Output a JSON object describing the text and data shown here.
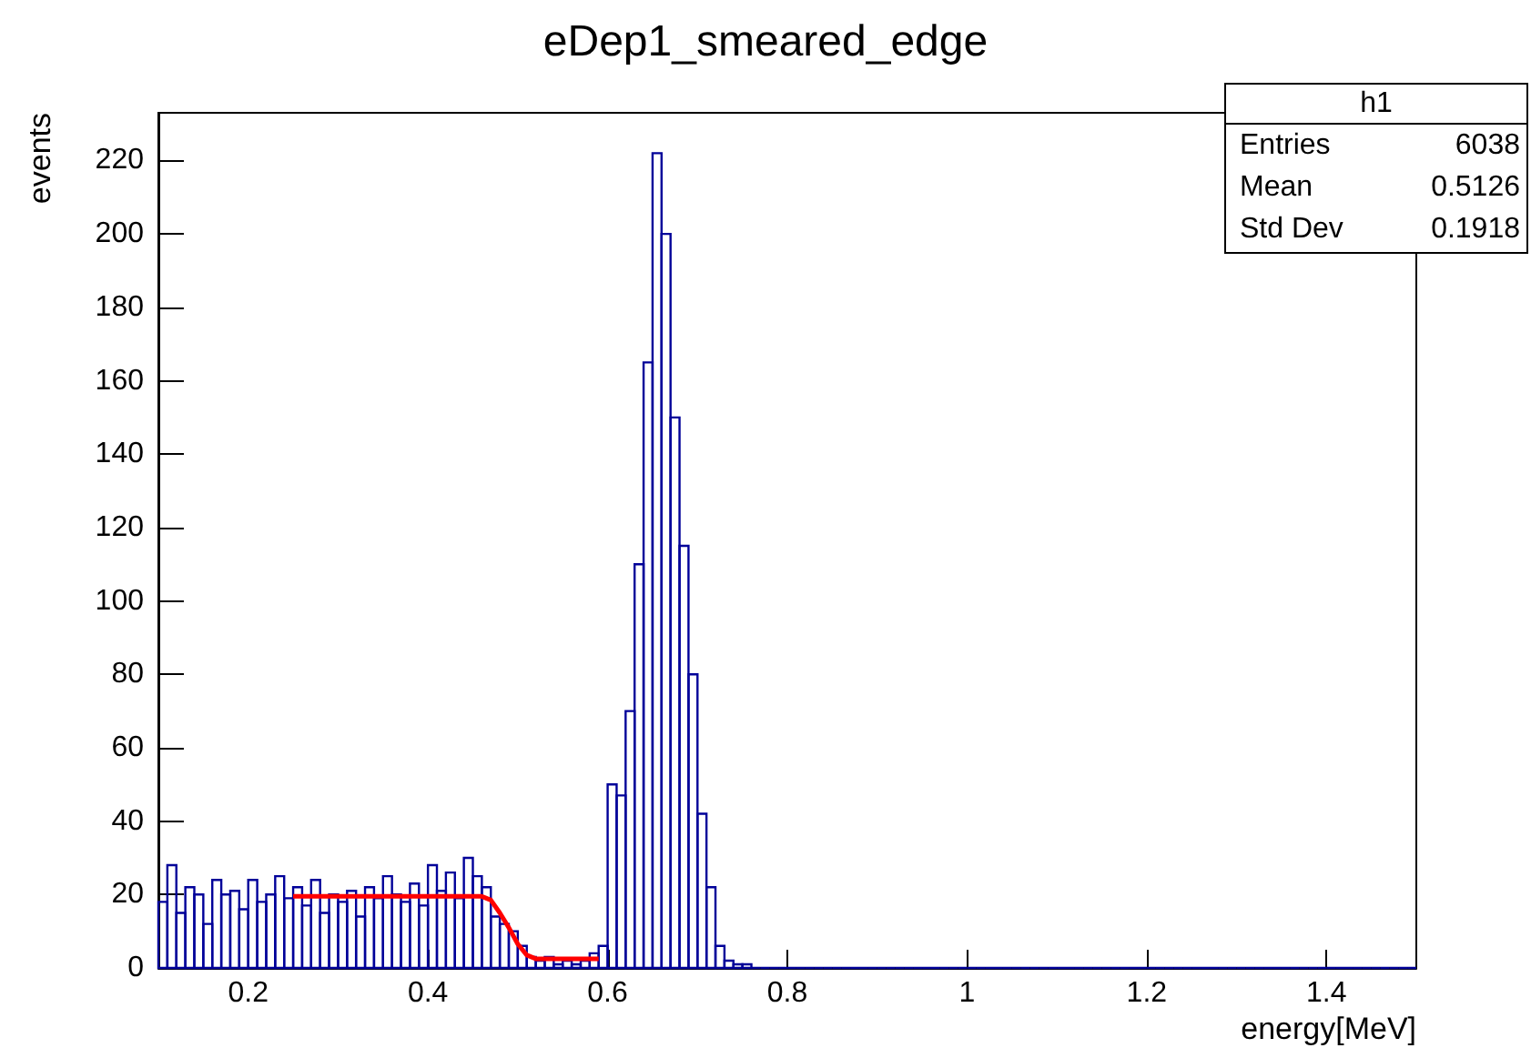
{
  "chart_data": {
    "type": "histogram",
    "title": "eDep1_smeared_edge",
    "xlabel": "energy[MeV]",
    "ylabel": "events",
    "bins": [
      0.1,
      0.11,
      0.12,
      0.13,
      0.14,
      0.15,
      0.16,
      0.17,
      0.18,
      0.19,
      0.2,
      0.21,
      0.22,
      0.23,
      0.24,
      0.25,
      0.26,
      0.27,
      0.28,
      0.29,
      0.3,
      0.31,
      0.32,
      0.33,
      0.34,
      0.35,
      0.36,
      0.37,
      0.38,
      0.39,
      0.4,
      0.41,
      0.42,
      0.43,
      0.44,
      0.45,
      0.46,
      0.47,
      0.48,
      0.49,
      0.5,
      0.51,
      0.52,
      0.53,
      0.54,
      0.55,
      0.56,
      0.57,
      0.58,
      0.59,
      0.6,
      0.61,
      0.62,
      0.63,
      0.64,
      0.65,
      0.66,
      0.67,
      0.68,
      0.69,
      0.7,
      0.71,
      0.72,
      0.73,
      0.74,
      0.75,
      0.76,
      0.77,
      0.78,
      0.79,
      0.8,
      0.81,
      0.82,
      0.83,
      0.84,
      0.85,
      0.86,
      0.87,
      0.88,
      0.89,
      0.9,
      0.91,
      0.92,
      0.93,
      0.94,
      0.95,
      0.96,
      0.97,
      0.98,
      0.99,
      1.0,
      1.01,
      1.02,
      1.03,
      1.04,
      1.05,
      1.06,
      1.07,
      1.08,
      1.09,
      1.1,
      1.11,
      1.12,
      1.13,
      1.14,
      1.15,
      1.16,
      1.17,
      1.18,
      1.19,
      1.2,
      1.21,
      1.22,
      1.23,
      1.24,
      1.25,
      1.26,
      1.27,
      1.28,
      1.29,
      1.3,
      1.31,
      1.32,
      1.33,
      1.34,
      1.35,
      1.36,
      1.37,
      1.38,
      1.39,
      1.4,
      1.41,
      1.42,
      1.43,
      1.44,
      1.45,
      1.46,
      1.47,
      1.48,
      1.49,
      1.5
    ],
    "values": [
      18,
      28,
      15,
      22,
      20,
      12,
      24,
      20,
      21,
      16,
      24,
      18,
      20,
      25,
      19,
      22,
      17,
      24,
      15,
      20,
      18,
      21,
      14,
      22,
      19,
      25,
      20,
      18,
      23,
      17,
      28,
      21,
      26,
      19,
      30,
      25,
      22,
      14,
      12,
      10,
      6,
      3,
      2,
      3,
      1,
      2,
      1,
      2,
      4,
      6,
      50,
      47,
      70,
      110,
      165,
      222,
      200,
      150,
      115,
      80,
      42,
      22,
      6,
      2,
      1,
      1,
      0,
      0,
      0,
      0,
      0,
      0,
      0,
      0,
      0,
      0,
      0,
      0,
      0,
      0,
      0,
      0,
      0,
      0,
      0,
      0,
      0,
      0,
      0,
      0,
      0,
      0,
      0,
      0,
      0,
      0,
      0,
      0,
      0,
      0,
      0,
      0,
      0,
      0,
      0,
      0,
      0,
      0,
      0,
      0,
      0,
      0,
      0,
      0,
      0,
      0,
      0,
      0,
      0,
      0,
      0,
      0,
      0,
      0,
      0,
      0,
      0,
      0,
      0,
      0,
      0,
      0,
      0,
      0,
      0,
      0,
      0,
      0,
      0,
      0
    ],
    "color": "#000099",
    "series": [
      {
        "type": "line",
        "color": "#ff0000",
        "x": [
          0.25,
          0.46,
          0.47,
          0.48,
          0.49,
          0.5,
          0.51,
          0.52,
          0.59
        ],
        "values": [
          19.5,
          19.5,
          18.5,
          15,
          11,
          6.5,
          3.5,
          2.5,
          2.5
        ]
      }
    ],
    "xlim": [
      0.1,
      1.5
    ],
    "ylim": [
      0,
      233
    ],
    "xticks": [
      0.2,
      0.4,
      0.6,
      0.8,
      {
        "value": 1.0,
        "label": "1"
      },
      1.2,
      1.4
    ],
    "yticks": [
      0,
      20,
      40,
      60,
      80,
      100,
      120,
      140,
      160,
      180,
      200,
      220
    ],
    "grid": false,
    "marker": "none",
    "line_style": "solid",
    "annotations": [
      "h1",
      "Entries",
      "6038",
      "Mean",
      "0.5126",
      "Std Dev",
      "0.1918"
    ]
  }
}
